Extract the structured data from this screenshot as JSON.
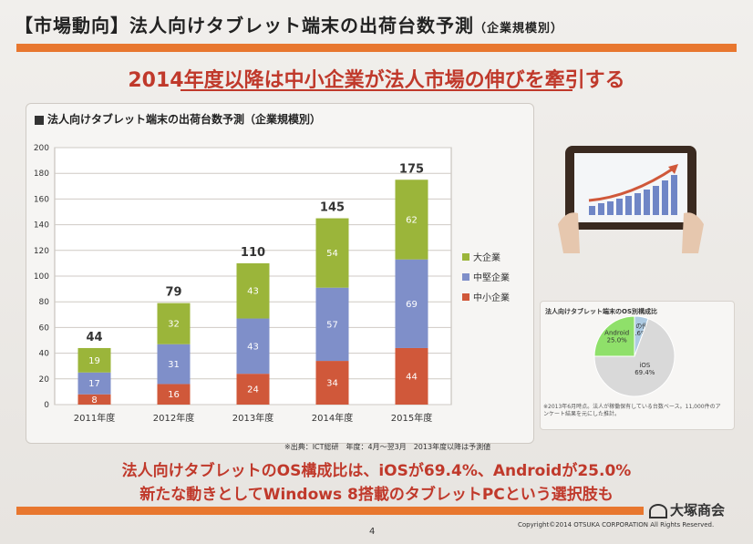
{
  "slide": {
    "title": "【市場動向】法人向けタブレット端末の出荷台数予測",
    "title_sub": "（企業規模別）",
    "headline": "2014年度以降は中小企業が法人市場の伸びを牽引する",
    "bottom_line1": "法人向けタブレットのOS構成比は、iOSが69.4%、Androidが25.0%",
    "bottom_line2": "新たな動きとしてWindows 8搭載のタブレットPCという選択肢も",
    "logo": "大塚商会",
    "page_number": "4",
    "copyright": "Copyright©2014 OTSUKA CORPORATION All Rights Reserved.",
    "source_note": "※出典：ICT総研　年度：4月～翌3月　2013年度以降は予測値",
    "tablet_icon": "tablet-growth-chart-icon"
  },
  "colors": {
    "large": "#9bb53a",
    "medium": "#7f8fc9",
    "small": "#d0583a",
    "accent": "#e8772f",
    "headline": "#c0392b"
  },
  "chart_data": [
    {
      "type": "bar",
      "stacked": true,
      "title": "法人向けタブレット端末の出荷台数予測（企業規模別）",
      "categories": [
        "2011年度",
        "2012年度",
        "2013年度",
        "2014年度",
        "2015年度"
      ],
      "series": [
        {
          "name": "中小企業",
          "values": [
            8,
            16,
            24,
            34,
            44
          ]
        },
        {
          "name": "中堅企業",
          "values": [
            17,
            31,
            43,
            57,
            69
          ]
        },
        {
          "name": "大企業",
          "values": [
            19,
            32,
            43,
            54,
            62
          ]
        }
      ],
      "totals": [
        44,
        79,
        110,
        145,
        175
      ],
      "ylim": [
        0,
        200
      ],
      "yticks": [
        0,
        20,
        40,
        60,
        80,
        100,
        120,
        140,
        160,
        180,
        200
      ],
      "grid": true,
      "legend": "right",
      "legend_order": [
        "大企業",
        "中堅企業",
        "中小企業"
      ]
    },
    {
      "type": "pie",
      "title": "法人向けタブレット端末のOS別構成比",
      "slices": [
        {
          "name": "iOS",
          "value": 69.4,
          "label": "iOS\n69.4%"
        },
        {
          "name": "Android",
          "value": 25.0,
          "label": "Android\n25.0%"
        },
        {
          "name": "その他",
          "value": 5.6,
          "label": "その他\n5.6%"
        }
      ],
      "note": "※2013年6月時点。法人が稼働保有している台数ベース。11,000件のアンケート結果を元にした推計。"
    }
  ]
}
